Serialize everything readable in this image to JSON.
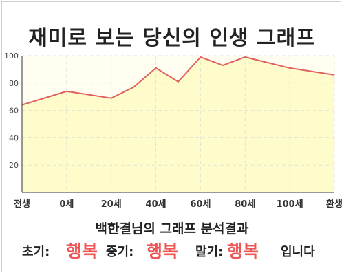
{
  "title": "재미로 보는 당신의 인생 그래프",
  "subtitle": "백한결님의 그래프 분석결과",
  "summary": {
    "early_label": "초기:",
    "early_value": "행복",
    "middle_label": "중기:",
    "middle_value": "행복",
    "late_label": "말기:",
    "late_value": "행복",
    "ending": "입니다"
  },
  "colors": {
    "line": "#e06060",
    "fill": "#fffccc",
    "plot_bg": "#fffef0",
    "emphasis": "#ee5555"
  },
  "chart_data": {
    "type": "area",
    "x_tick_labels": [
      "전생",
      "0세",
      "20세",
      "40세",
      "60세",
      "80세",
      "100세",
      "환생"
    ],
    "x": [
      -20,
      0,
      20,
      30,
      40,
      50,
      60,
      70,
      80,
      100,
      120
    ],
    "values": [
      64,
      74,
      69,
      77,
      91,
      81,
      99,
      93,
      99,
      91,
      86
    ],
    "y_ticks": [
      20,
      40,
      60,
      80,
      100
    ],
    "ylim": [
      0,
      100
    ],
    "xlim": [
      -20,
      120
    ],
    "grid": true,
    "legend": "none"
  }
}
